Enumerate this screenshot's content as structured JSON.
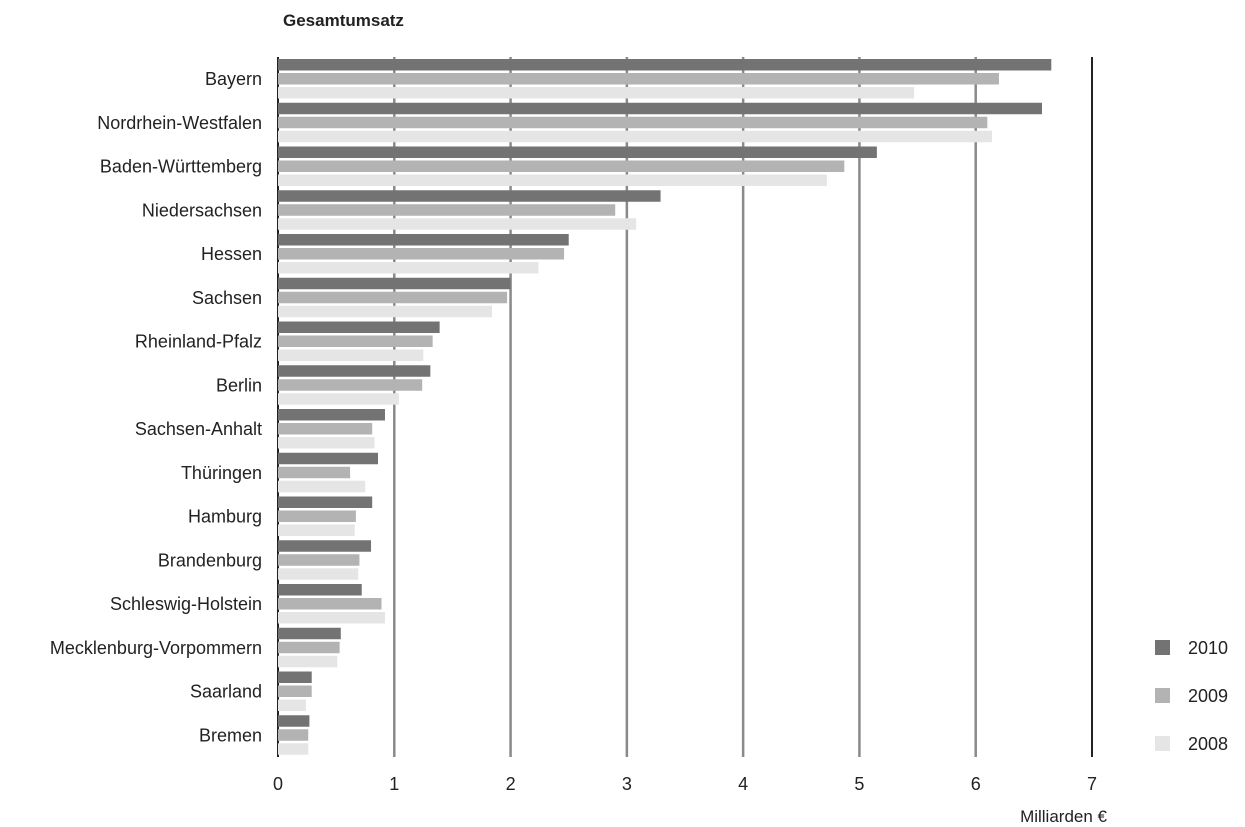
{
  "chart_data": {
    "type": "bar",
    "orientation": "horizontal",
    "title": "Gesamtumsatz",
    "xlabel": "Milliarden €",
    "ylabel": "",
    "xlim": [
      0,
      7
    ],
    "x_ticks": [
      "0",
      "1",
      "2",
      "3",
      "4",
      "5",
      "6",
      "7"
    ],
    "grid": "vertical",
    "legend_position": "right-bottom",
    "categories": [
      "Bayern",
      "Nordrhein-Westfalen",
      "Baden-Württemberg",
      "Niedersachsen",
      "Hessen",
      "Sachsen",
      "Rheinland-Pfalz",
      "Berlin",
      "Sachsen-Anhalt",
      "Thüringen",
      "Hamburg",
      "Brandenburg",
      "Schleswig-Holstein",
      "Mecklenburg-Vorpommern",
      "Saarland",
      "Bremen"
    ],
    "series": [
      {
        "name": "2010",
        "color": "#737373",
        "values": [
          6.65,
          6.57,
          5.15,
          3.29,
          2.5,
          2.0,
          1.39,
          1.31,
          0.92,
          0.86,
          0.81,
          0.8,
          0.72,
          0.54,
          0.29,
          0.27
        ]
      },
      {
        "name": "2009",
        "color": "#b3b3b3",
        "values": [
          6.2,
          6.1,
          4.87,
          2.9,
          2.46,
          1.97,
          1.33,
          1.24,
          0.81,
          0.62,
          0.67,
          0.7,
          0.89,
          0.53,
          0.29,
          0.26
        ]
      },
      {
        "name": "2008",
        "color": "#e5e5e5",
        "values": [
          5.47,
          6.14,
          4.72,
          3.08,
          2.24,
          1.84,
          1.25,
          1.04,
          0.83,
          0.75,
          0.66,
          0.69,
          0.92,
          0.51,
          0.24,
          0.26
        ]
      }
    ]
  }
}
